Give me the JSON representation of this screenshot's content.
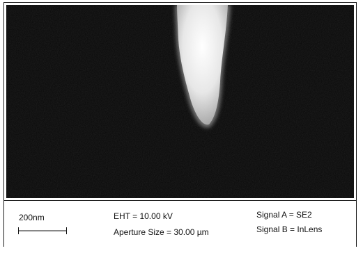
{
  "micrograph": {
    "scale_label": "200nm",
    "eht": "EHT = 10.00 kV",
    "aperture": "Aperture Size = 30.00 µm",
    "signal_a": "Signal A = SE2",
    "signal_b": "Signal B = InLens"
  },
  "colors": {
    "background": "#070707",
    "tip": "#f4f4f4",
    "text": "#111111"
  }
}
